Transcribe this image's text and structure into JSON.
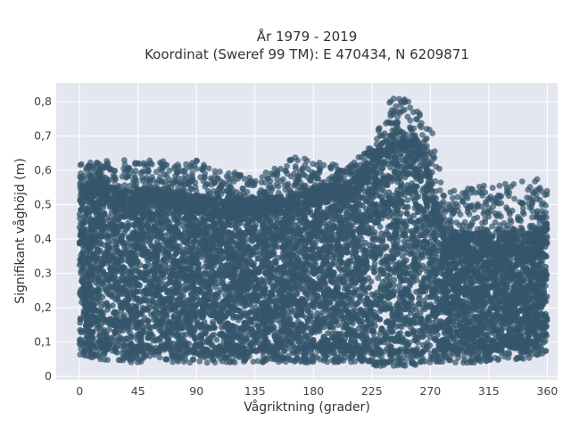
{
  "chart_data": {
    "type": "scatter",
    "title_line1": "År 1979 - 2019",
    "title_line2": "Koordinat (Sweref 99 TM): E 470434, N 6209871",
    "xlabel": "Vågriktning (grader)",
    "ylabel": "Signifikant våghöjd (m)",
    "xlim": [
      -18,
      368
    ],
    "ylim": [
      -0.01,
      0.855
    ],
    "xticks": [
      0,
      45,
      90,
      135,
      180,
      225,
      270,
      315,
      360
    ],
    "yticks": [
      0,
      0.1,
      0.2,
      0.3,
      0.4,
      0.5,
      0.6,
      0.7,
      0.8
    ],
    "yticklabels": [
      "0",
      "0,1",
      "0,2",
      "0,3",
      "0,4",
      "0,5",
      "0,6",
      "0,7",
      "0,8"
    ],
    "marker_color": "#34566b",
    "background_color": "#e5e7f0",
    "grid": true,
    "envelope": {
      "direction": [
        0,
        15,
        30,
        45,
        60,
        75,
        90,
        105,
        120,
        135,
        150,
        165,
        180,
        195,
        210,
        220,
        228,
        235,
        242,
        250,
        258,
        265,
        272,
        280,
        290,
        300,
        315,
        330,
        345,
        360
      ],
      "min_height": [
        0.07,
        0.06,
        0.05,
        0.05,
        0.05,
        0.05,
        0.05,
        0.05,
        0.05,
        0.05,
        0.05,
        0.05,
        0.05,
        0.05,
        0.05,
        0.05,
        0.04,
        0.04,
        0.04,
        0.04,
        0.04,
        0.05,
        0.05,
        0.05,
        0.05,
        0.05,
        0.05,
        0.06,
        0.06,
        0.08
      ],
      "dense_max_height": [
        0.56,
        0.58,
        0.55,
        0.55,
        0.55,
        0.54,
        0.53,
        0.52,
        0.52,
        0.52,
        0.53,
        0.53,
        0.55,
        0.56,
        0.58,
        0.62,
        0.66,
        0.7,
        0.72,
        0.72,
        0.71,
        0.66,
        0.55,
        0.45,
        0.42,
        0.42,
        0.42,
        0.42,
        0.42,
        0.45
      ],
      "outlier_max_height": [
        0.62,
        0.63,
        0.63,
        0.64,
        0.63,
        0.62,
        0.63,
        0.6,
        0.6,
        0.58,
        0.61,
        0.64,
        0.63,
        0.62,
        0.62,
        0.66,
        0.7,
        0.78,
        0.82,
        0.82,
        0.8,
        0.74,
        0.72,
        0.56,
        0.54,
        0.55,
        0.56,
        0.57,
        0.57,
        0.58
      ]
    }
  }
}
